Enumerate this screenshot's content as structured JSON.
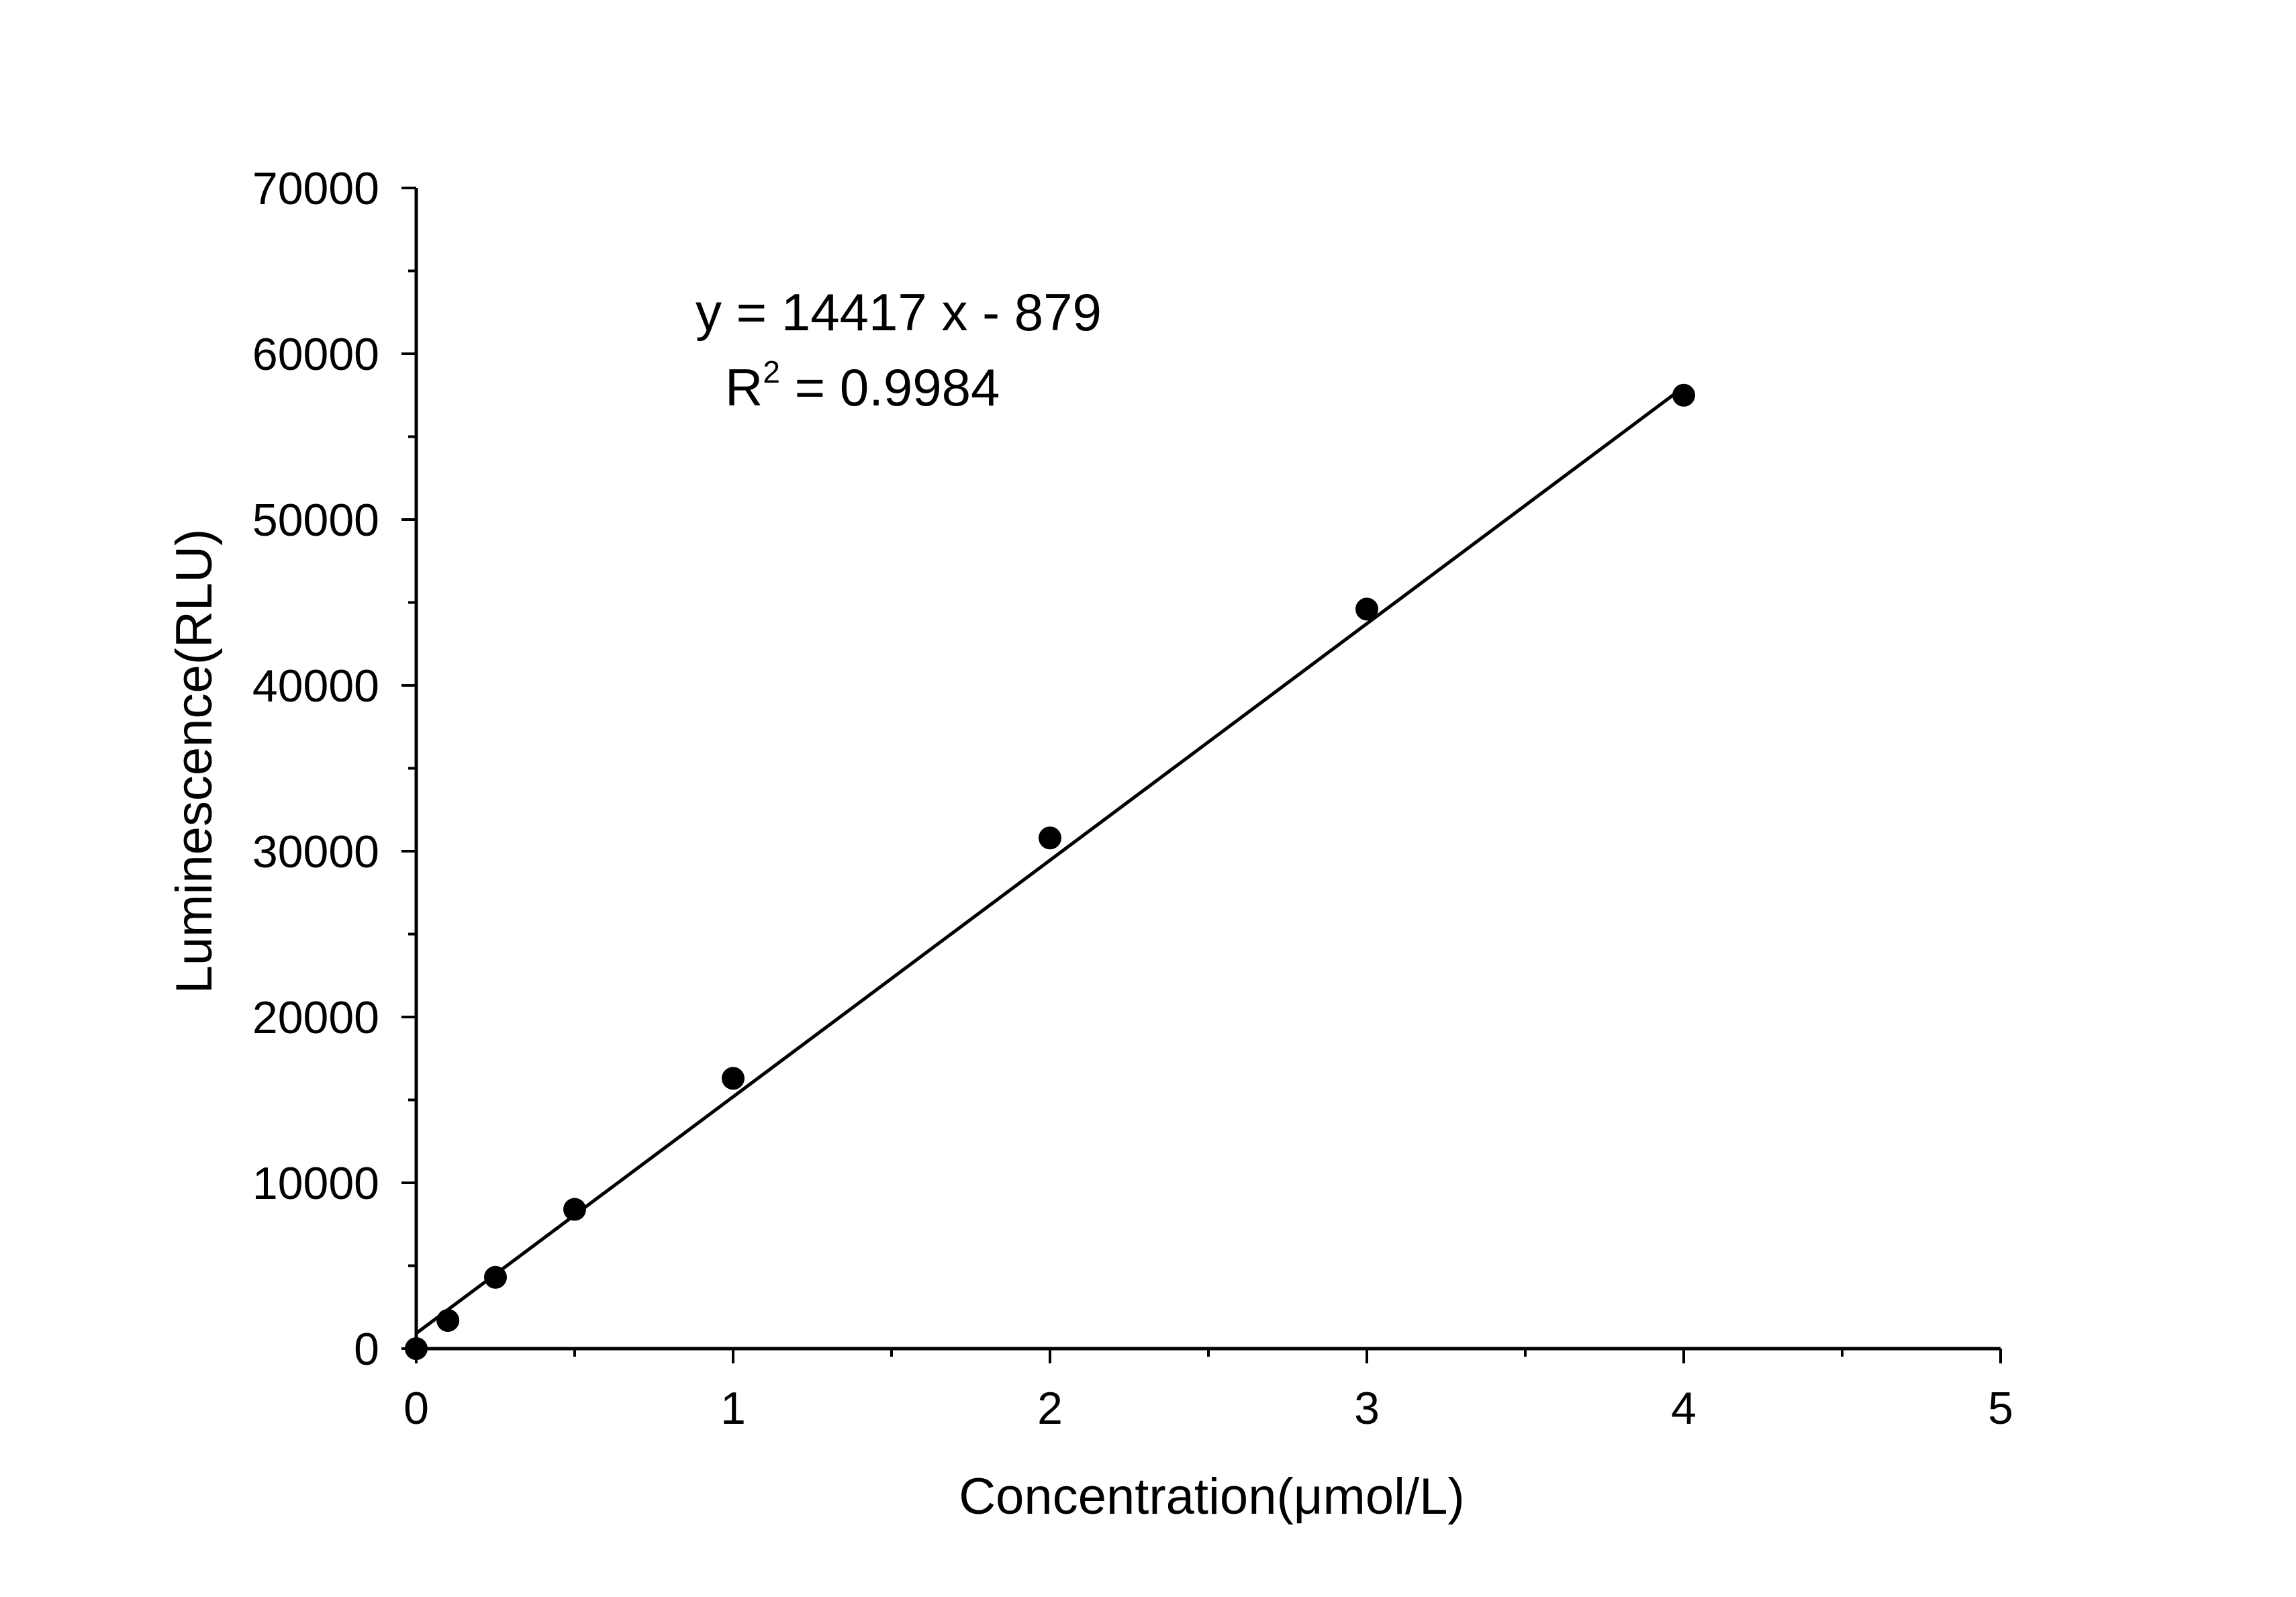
{
  "chart_data": {
    "type": "scatter",
    "title": "",
    "xlabel": "Concentration(μmol/L)",
    "ylabel": "Luminescence(RLU)",
    "xlim": [
      0,
      5
    ],
    "ylim": [
      0,
      70000
    ],
    "x_ticks": [
      0,
      1,
      2,
      3,
      4,
      5
    ],
    "y_ticks": [
      0,
      10000,
      20000,
      30000,
      40000,
      50000,
      60000,
      70000
    ],
    "x_tick_labels": [
      "0",
      "1",
      "2",
      "3",
      "4",
      "5"
    ],
    "y_tick_labels": [
      "0",
      "10000",
      "20000",
      "30000",
      "40000",
      "50000",
      "60000",
      "70000"
    ],
    "grid": false,
    "legend": "none",
    "series": [
      {
        "points": [
          {
            "x": 0,
            "y": 0
          },
          {
            "x": 0.1,
            "y": 1700
          },
          {
            "x": 0.25,
            "y": 4300
          },
          {
            "x": 0.5,
            "y": 8400
          },
          {
            "x": 1,
            "y": 16300
          },
          {
            "x": 2,
            "y": 30800
          },
          {
            "x": 3,
            "y": 44600
          },
          {
            "x": 4,
            "y": 57500
          }
        ],
        "color": "#000000"
      }
    ],
    "fit_line": {
      "slope": 14417,
      "intercept": -879,
      "x_range": [
        0,
        4
      ],
      "color": "#000000"
    },
    "annotations": {
      "equation": "y = 14417 x - 879",
      "r_squared_prefix": "R",
      "r_squared_sup": "2",
      "r_squared_value": " = 0.9984"
    }
  }
}
